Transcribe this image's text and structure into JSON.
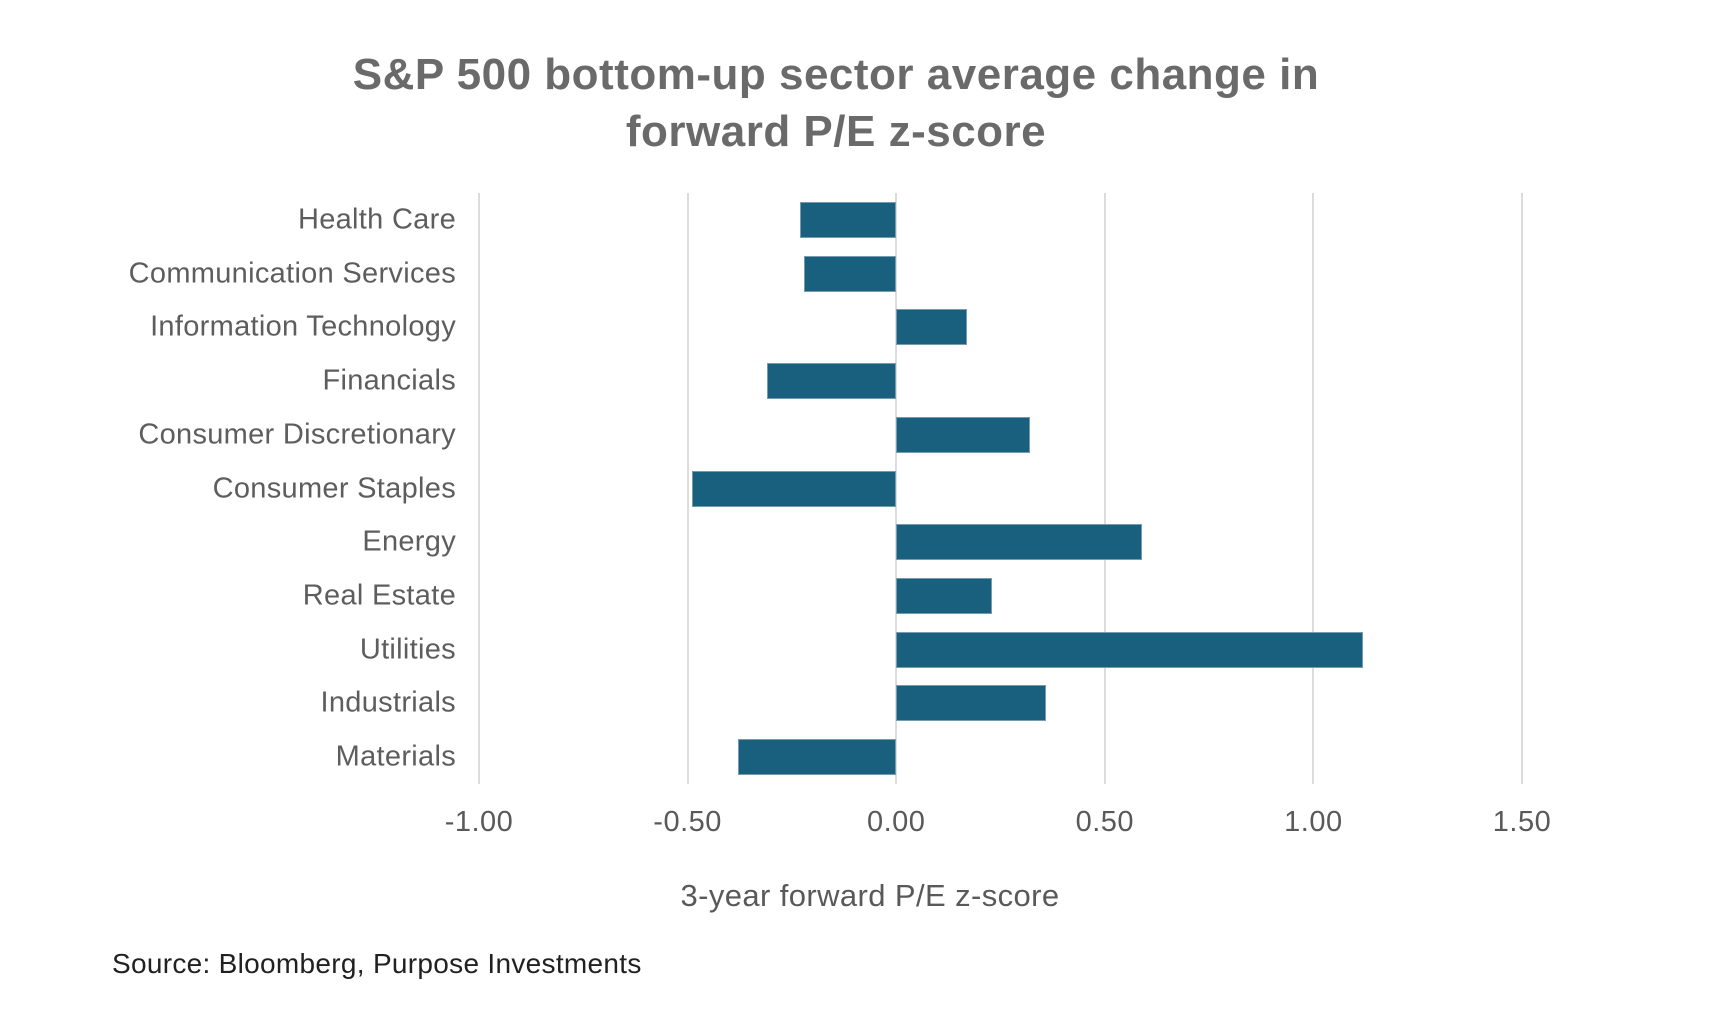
{
  "title": {
    "line1": "S&P 500 bottom-up sector average change in",
    "line2": "forward P/E z-score"
  },
  "chart_data": {
    "type": "bar",
    "orientation": "horizontal",
    "title": "S&P 500 bottom-up sector average change in forward P/E z-score",
    "categories": [
      "Health Care",
      "Communication Services",
      "Information Technology",
      "Financials",
      "Consumer Discretionary",
      "Consumer Staples",
      "Energy",
      "Real Estate",
      "Utilities",
      "Industrials",
      "Materials"
    ],
    "values": [
      -0.23,
      -0.22,
      0.17,
      -0.31,
      0.32,
      -0.49,
      0.59,
      0.23,
      1.12,
      0.36,
      -0.38
    ],
    "xlabel": "3-year forward P/E z-score",
    "ylabel": "",
    "xlim": [
      -1.0,
      1.5
    ],
    "x_ticks": [
      -1.0,
      -0.5,
      0.0,
      0.5,
      1.0,
      1.5
    ],
    "x_tick_labels": [
      "-1.00",
      "-0.50",
      "0.00",
      "0.50",
      "1.00",
      "1.50"
    ],
    "grid": true,
    "legend": false,
    "bar_color": "#19607f"
  },
  "source": "Source: Bloomberg, Purpose Investments",
  "colors": {
    "bar": "#19607f",
    "gridline": "#dcdcdc",
    "title_text": "#6a6a6a",
    "label_text": "#5d5d5d",
    "tick_text": "#595959",
    "source_text": "#212121",
    "background": "#ffffff"
  }
}
